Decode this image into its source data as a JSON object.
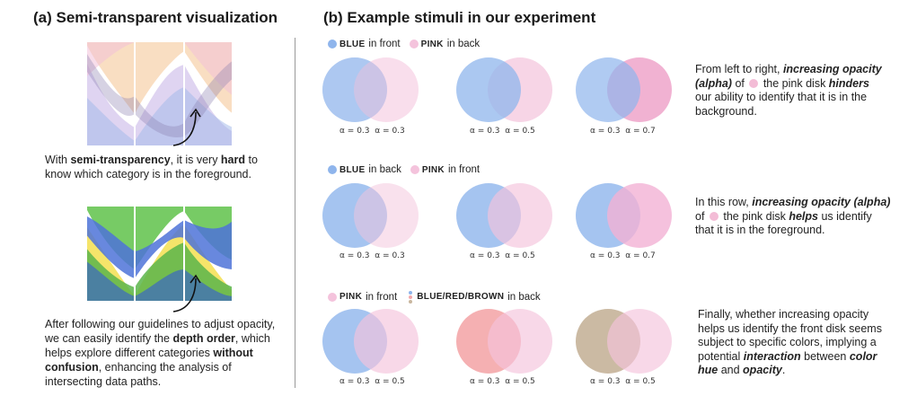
{
  "panel_a": {
    "title": "(a) Semi-transparent visualization",
    "caption1": {
      "t1": "With ",
      "b1": "semi-transparency",
      "t2": ", it is very ",
      "b2": "hard",
      "t3": " to know which category is in the foreground."
    },
    "caption2": {
      "t1": "After following our guidelines to adjust opacity, we can easily identify the ",
      "b1": "depth order",
      "t2": ", which helps explore different categories ",
      "b2": "without confusion",
      "t3": ", enhancing the analysis of intersecting data paths."
    }
  },
  "panel_b": {
    "title": "(b) Example stimuli in our experiment",
    "rows": [
      {
        "legend": {
          "a_label": "BLUE",
          "a_text": " in front",
          "b_label": "PINK",
          "b_text": " in back"
        },
        "alphas": [
          [
            "α = 0.3",
            "α = 0.3"
          ],
          [
            "α = 0.3",
            "α = 0.5"
          ],
          [
            "α = 0.3",
            "α = 0.7"
          ]
        ],
        "desc": {
          "t1": "From left to right, ",
          "i1": "increasing opacity (alpha)",
          "t2": " of ",
          "t3": " the pink disk ",
          "i2": "hinders",
          "t4": " our ability to identify that it is in the background."
        }
      },
      {
        "legend": {
          "a_label": "BLUE",
          "a_text": " in back",
          "b_label": "PINK",
          "b_text": " in front"
        },
        "alphas": [
          [
            "α = 0.3",
            "α = 0.3"
          ],
          [
            "α = 0.3",
            "α = 0.5"
          ],
          [
            "α = 0.3",
            "α = 0.7"
          ]
        ],
        "desc": {
          "t1": "In this row, ",
          "i1": "increasing opacity (alpha)",
          "t2": " of ",
          "t3": " the pink disk ",
          "i2": "helps",
          "t4": " us identify that it is in the foreground."
        }
      },
      {
        "legend": {
          "a_label": "PINK",
          "a_text": " in front",
          "b_label": "BLUE/RED/BROWN",
          "b_text": " in back"
        },
        "alphas": [
          [
            "α = 0.3",
            "α = 0.5"
          ],
          [
            "α = 0.3",
            "α = 0.5"
          ],
          [
            "α = 0.3",
            "α = 0.5"
          ]
        ],
        "desc": {
          "t1": "Finally, whether increasing opacity helps us identify the front disk seems subject to specific colors, implying a potential ",
          "i1": "interaction",
          "t2": " between ",
          "i2": "color hue",
          "t3": " and ",
          "i3": "opacity",
          "t4": "."
        }
      }
    ]
  },
  "colors": {
    "blue": "#8fb5ec",
    "pink": "#f4c3dc",
    "red": "#f4a7aa",
    "brown": "#c8b69e",
    "yellow": "#f4e15a",
    "green": "#5fc24a",
    "orange": "#f3c99a"
  }
}
